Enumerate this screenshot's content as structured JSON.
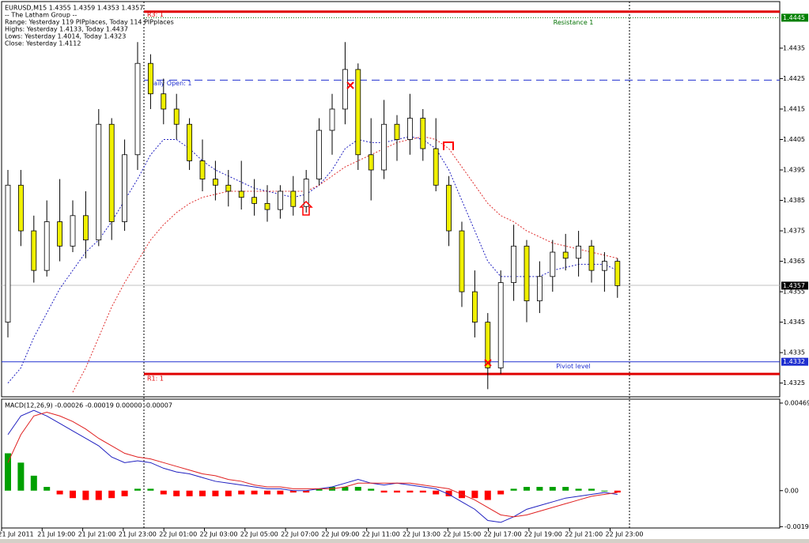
{
  "chart_data": {
    "type": "candlestick",
    "title": "EURUSD,M15  1.4355 1.4359 1.4353 1.4357",
    "info_lines": [
      "-- The Latham Group --",
      "Range: Yesterday 119 PIPplaces, Today 114 PIPplaces",
      "Highs: Yesterday 1.4133, Today 1.4437",
      "Lows: Yesterday 1.4014, Today 1.4323",
      "Close: Yesterday 1.4112"
    ],
    "categories": [
      "21 Jul 2011",
      "21 Jul 19:00",
      "21 Jul 21:00",
      "21 Jul 23:00",
      "22 Jul 01:00",
      "22 Jul 03:00",
      "22 Jul 05:00",
      "22 Jul 07:00",
      "22 Jul 09:00",
      "22 Jul 11:00",
      "22 Jul 13:00",
      "22 Jul 15:00",
      "22 Jul 17:00",
      "22 Jul 19:00",
      "22 Jul 21:00",
      "22 Jul 23:00"
    ],
    "up_color": "#ffffff",
    "down_color": "#f0f000",
    "candles": [
      [
        1.4345,
        1.4395,
        1.434,
        1.439
      ],
      [
        1.439,
        1.4395,
        1.437,
        1.4375
      ],
      [
        1.4375,
        1.438,
        1.4358,
        1.4362
      ],
      [
        1.4362,
        1.4385,
        1.436,
        1.4378
      ],
      [
        1.4378,
        1.4392,
        1.4365,
        1.437
      ],
      [
        1.437,
        1.4385,
        1.4368,
        1.438
      ],
      [
        1.438,
        1.4388,
        1.4366,
        1.4372
      ],
      [
        1.4372,
        1.4415,
        1.437,
        1.441
      ],
      [
        1.441,
        1.4412,
        1.4372,
        1.4378
      ],
      [
        1.4378,
        1.4405,
        1.4375,
        1.44
      ],
      [
        1.44,
        1.4437,
        1.4395,
        1.443
      ],
      [
        1.443,
        1.4433,
        1.4415,
        1.442
      ],
      [
        1.442,
        1.4425,
        1.441,
        1.4415
      ],
      [
        1.4415,
        1.442,
        1.4405,
        1.441
      ],
      [
        1.441,
        1.4412,
        1.4395,
        1.4398
      ],
      [
        1.4398,
        1.4405,
        1.4388,
        1.4392
      ],
      [
        1.4392,
        1.4398,
        1.4385,
        1.439
      ],
      [
        1.439,
        1.4395,
        1.4383,
        1.4388
      ],
      [
        1.4388,
        1.4398,
        1.4382,
        1.4386
      ],
      [
        1.4386,
        1.4392,
        1.438,
        1.4384
      ],
      [
        1.4384,
        1.439,
        1.4378,
        1.4382
      ],
      [
        1.4382,
        1.439,
        1.4379,
        1.4388
      ],
      [
        1.4388,
        1.4393,
        1.438,
        1.4383
      ],
      [
        1.4383,
        1.4395,
        1.4381,
        1.4392
      ],
      [
        1.4392,
        1.4412,
        1.439,
        1.4408
      ],
      [
        1.4408,
        1.442,
        1.44,
        1.4415
      ],
      [
        1.4415,
        1.4437,
        1.441,
        1.4428
      ],
      [
        1.4428,
        1.443,
        1.4395,
        1.44
      ],
      [
        1.44,
        1.4412,
        1.4385,
        1.4395
      ],
      [
        1.4395,
        1.4418,
        1.4392,
        1.441
      ],
      [
        1.441,
        1.4413,
        1.4398,
        1.4405
      ],
      [
        1.4405,
        1.442,
        1.44,
        1.4412
      ],
      [
        1.4412,
        1.4415,
        1.4398,
        1.4402
      ],
      [
        1.4402,
        1.4412,
        1.4388,
        1.439
      ],
      [
        1.439,
        1.4393,
        1.437,
        1.4375
      ],
      [
        1.4375,
        1.4378,
        1.435,
        1.4355
      ],
      [
        1.4355,
        1.4362,
        1.434,
        1.4345
      ],
      [
        1.4345,
        1.4348,
        1.4323,
        1.433
      ],
      [
        1.433,
        1.4362,
        1.4328,
        1.4358
      ],
      [
        1.4358,
        1.4377,
        1.4352,
        1.437
      ],
      [
        1.437,
        1.4372,
        1.4345,
        1.4352
      ],
      [
        1.4352,
        1.4365,
        1.4348,
        1.436
      ],
      [
        1.436,
        1.4372,
        1.4355,
        1.4368
      ],
      [
        1.4368,
        1.4374,
        1.4362,
        1.4366
      ],
      [
        1.4366,
        1.4375,
        1.436,
        1.437
      ],
      [
        1.437,
        1.4372,
        1.4358,
        1.4362
      ],
      [
        1.4362,
        1.4368,
        1.4355,
        1.4365
      ],
      [
        1.4365,
        1.4366,
        1.4353,
        1.4357
      ]
    ],
    "moving_averages": [
      {
        "color": "#2020c0",
        "values": [
          1.4325,
          1.433,
          1.434,
          1.4348,
          1.4356,
          1.4362,
          1.4368,
          1.4372,
          1.4378,
          1.4385,
          1.4392,
          1.44,
          1.4405,
          1.4405,
          1.4402,
          1.4398,
          1.4395,
          1.4393,
          1.4391,
          1.4389,
          1.4388,
          1.4387,
          1.4386,
          1.4387,
          1.439,
          1.4395,
          1.4402,
          1.4405,
          1.4404,
          1.4404,
          1.4405,
          1.4406,
          1.4405,
          1.4402,
          1.4395,
          1.4385,
          1.4375,
          1.4365,
          1.436,
          1.436,
          1.436,
          1.436,
          1.4362,
          1.4363,
          1.4364,
          1.4364,
          1.4364,
          1.4362
        ]
      },
      {
        "color": "#e03030",
        "values": [
          null,
          null,
          null,
          null,
          null,
          1.4322,
          1.433,
          1.434,
          1.435,
          1.4358,
          1.4365,
          1.4372,
          1.4377,
          1.4381,
          1.4384,
          1.4386,
          1.4387,
          1.4388,
          1.4388,
          1.4388,
          1.4388,
          1.4388,
          1.4388,
          1.4388,
          1.439,
          1.4393,
          1.4396,
          1.4398,
          1.44,
          1.4402,
          1.4404,
          1.4405,
          1.4406,
          1.4405,
          1.4402,
          1.4396,
          1.439,
          1.4384,
          1.438,
          1.4378,
          1.4375,
          1.4373,
          1.4371,
          1.437,
          1.4369,
          1.4368,
          1.4367,
          1.4366
        ]
      }
    ],
    "levels": [
      {
        "name": "R3: 1",
        "value": 1.4447,
        "color": "#e00000"
      },
      {
        "name": "Resistance 1",
        "value": 1.4445,
        "color": "#007000"
      },
      {
        "name": "Daily Open: 1",
        "value": 1.44245,
        "color": "#2030d0"
      },
      {
        "name": "Piviot level",
        "value": 1.4332,
        "color": "#2030d0"
      },
      {
        "name": "R1: 1",
        "value": 1.4328,
        "color": "#e00000"
      }
    ],
    "ylim": [
      1.43205,
      1.44503
    ],
    "yticks": [
      1.4435,
      1.4425,
      1.4415,
      1.4405,
      1.4395,
      1.4385,
      1.4375,
      1.4365,
      1.4355,
      1.4345,
      1.4335,
      1.4325
    ],
    "price_tags": [
      {
        "value": 1.4445,
        "color": "#008000"
      },
      {
        "value": 1.4357,
        "color": "#000000"
      },
      {
        "value": 1.4332,
        "color": "#2030d0"
      }
    ],
    "macd": {
      "title": "MACD(12,26,9) -0.00026 -0.00019 0.00000 -0.00007",
      "y2lim": [
        -0.002,
        0.0049
      ],
      "y2ticks": [
        0.00469,
        {
          "value": 0,
          "label": "0.00"
        },
        -0.00193
      ],
      "histogram": [
        0.002,
        0.0015,
        0.0008,
        0.0002,
        -0.0002,
        -0.0004,
        -0.0005,
        -0.0005,
        -0.0004,
        -0.0003,
        0.0001,
        0.0001,
        -0.0002,
        -0.0003,
        -0.0003,
        -0.0003,
        -0.0003,
        -0.0003,
        -0.0002,
        -0.0002,
        -0.0002,
        -0.0002,
        -0.0001,
        -0.0001,
        0.0001,
        0.0002,
        0.0002,
        0.0002,
        0.0001,
        -0.0001,
        -0.0001,
        -0.0001,
        -0.0001,
        -0.0002,
        -0.0003,
        -0.0004,
        -0.0004,
        -0.0005,
        -0.0002,
        0.0001,
        0.0002,
        0.0002,
        0.0002,
        0.0002,
        0.0001,
        0.0001,
        0.0,
        -0.0001
      ],
      "positive_color": "#00a000",
      "negative_color": "#ff0000",
      "lines": [
        {
          "color": "#2020c0",
          "values": [
            0.003,
            0.004,
            0.0043,
            0.004,
            0.0036,
            0.0032,
            0.0028,
            0.0024,
            0.0018,
            0.0015,
            0.0016,
            0.0015,
            0.0012,
            0.001,
            0.0009,
            0.0007,
            0.0005,
            0.0004,
            0.0003,
            0.0002,
            0.0001,
            0.0001,
            0.0,
            0.0,
            0.0001,
            0.0002,
            0.0004,
            0.0006,
            0.0004,
            0.0003,
            0.0004,
            0.0003,
            0.0002,
            0.0001,
            -0.0002,
            -0.0006,
            -0.001,
            -0.0016,
            -0.0017,
            -0.0014,
            -0.001,
            -0.0008,
            -0.0006,
            -0.0004,
            -0.0003,
            -0.0002,
            -0.0001,
            -0.0002
          ]
        },
        {
          "color": "#e02020",
          "values": [
            0.0015,
            0.003,
            0.004,
            0.0042,
            0.004,
            0.0037,
            0.0033,
            0.0028,
            0.0024,
            0.002,
            0.0018,
            0.0017,
            0.0015,
            0.0013,
            0.0011,
            0.0009,
            0.0008,
            0.0006,
            0.0005,
            0.0003,
            0.0002,
            0.0002,
            0.0001,
            0.0001,
            0.0001,
            0.0001,
            0.0002,
            0.0004,
            0.0004,
            0.0004,
            0.0004,
            0.0004,
            0.0003,
            0.0002,
            0.0001,
            -0.0002,
            -0.0005,
            -0.0009,
            -0.0013,
            -0.0014,
            -0.0013,
            -0.0011,
            -0.0009,
            -0.0007,
            -0.0005,
            -0.0003,
            -0.0002,
            -0.0001
          ]
        }
      ]
    }
  }
}
